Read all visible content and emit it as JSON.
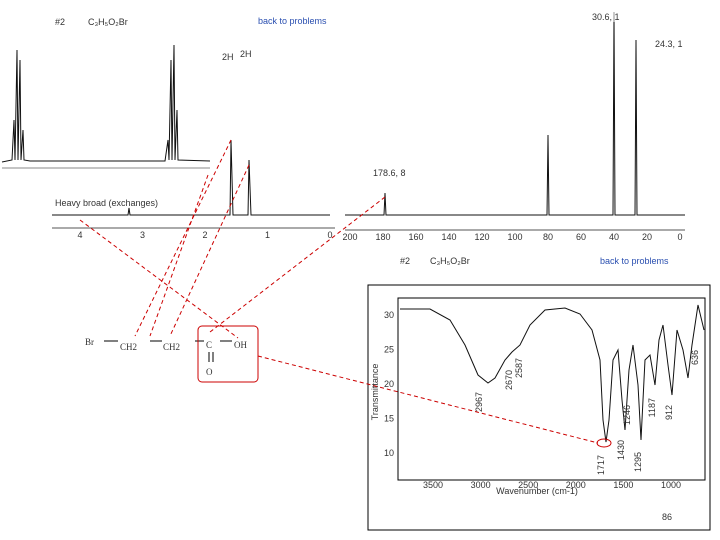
{
  "header": {
    "number": "#2",
    "formula": "C₃H₅O₂Br",
    "link": "back to problems"
  },
  "hnmr": {
    "note": "Heavy broad (exchanges)",
    "integrals": [
      "2H",
      "2H"
    ],
    "ticks": [
      "4",
      "3",
      "2",
      "1",
      "0"
    ]
  },
  "cnmr": {
    "peak_labels": [
      "30.6, 1",
      "24.3, 1",
      "178.6, 8"
    ],
    "ticks": [
      "200",
      "180",
      "160",
      "140",
      "120",
      "100",
      "80",
      "60",
      "40",
      "20",
      "0"
    ]
  },
  "ir_header": {
    "number": "#2",
    "formula": "C₃H₅O₂Br",
    "link": "back to problems"
  },
  "ir": {
    "y_label": "Transmittance",
    "x_label": "Wavenumber (cm-1)",
    "yticks": [
      "30",
      "25",
      "20",
      "15",
      "10"
    ],
    "xticks": [
      "3500",
      "3000",
      "2500",
      "2000",
      "1500",
      "1000"
    ],
    "peaks": [
      "2967",
      "2670",
      "2587",
      "1717",
      "1430",
      "1295",
      "1246",
      "1187",
      "912",
      "636"
    ]
  },
  "structure": {
    "atoms": [
      "Br",
      "CH2",
      "CH2",
      "C",
      "OH",
      "O"
    ]
  },
  "page_number": "86"
}
